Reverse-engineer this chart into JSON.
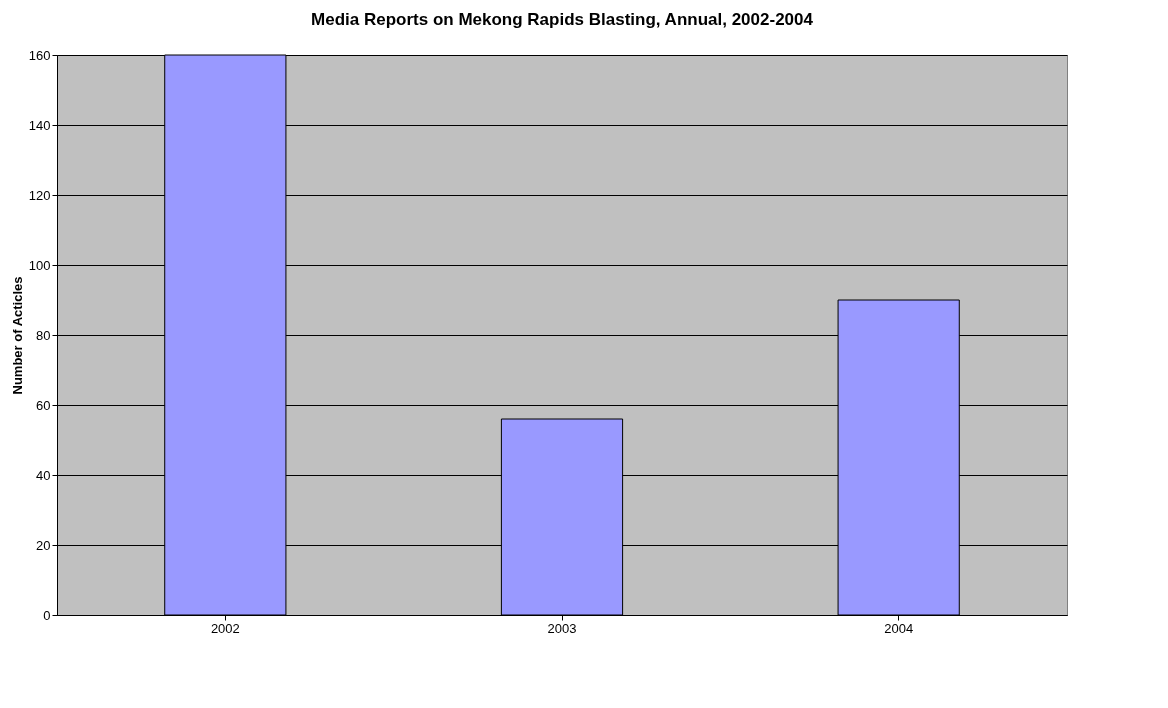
{
  "chart_data": {
    "type": "bar",
    "title": "Media Reports on Mekong Rapids Blasting, Annual, 2002-2004",
    "ylabel": "Number of Acticles",
    "categories": [
      "2002",
      "2003",
      "2004"
    ],
    "values": [
      160,
      56,
      90
    ],
    "color": "#9999ff",
    "ylim": [
      0,
      160
    ],
    "yticks": [
      0,
      20,
      40,
      60,
      80,
      100,
      120,
      140,
      160
    ],
    "grid": "y"
  }
}
